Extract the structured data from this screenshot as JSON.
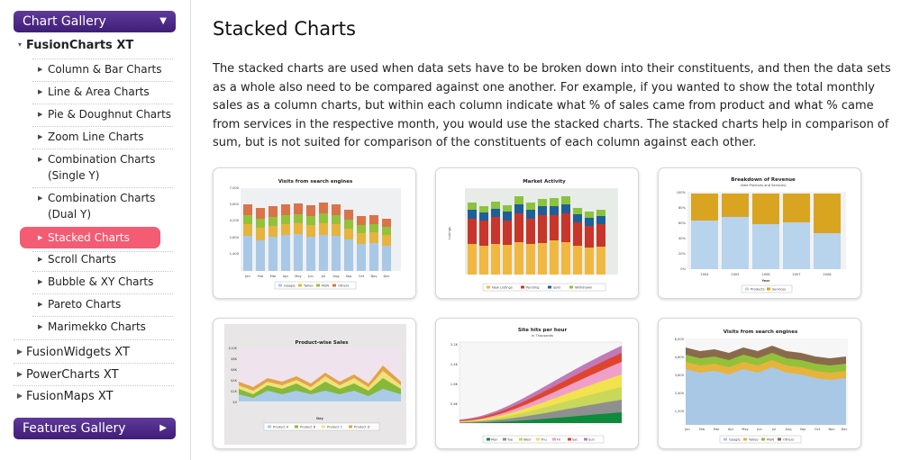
{
  "sidebar": {
    "chart_gallery_label": "Chart Gallery",
    "features_gallery_label": "Features Gallery",
    "fusioncharts_label": "FusionCharts XT",
    "items": [
      {
        "label": "Column & Bar Charts"
      },
      {
        "label": "Line & Area Charts"
      },
      {
        "label": "Pie & Doughnut Charts"
      },
      {
        "label": "Zoom Line Charts"
      },
      {
        "label": "Combination Charts",
        "label2": "(Single Y)"
      },
      {
        "label": "Combination Charts",
        "label2": "(Dual Y)"
      },
      {
        "label": "Stacked Charts"
      },
      {
        "label": "Scroll Charts"
      },
      {
        "label": "Bubble & XY Charts"
      },
      {
        "label": "Pareto Charts"
      },
      {
        "label": "Marimekko Charts"
      }
    ],
    "products": [
      {
        "label": "FusionWidgets XT"
      },
      {
        "label": "PowerCharts XT"
      },
      {
        "label": "FusionMaps XT"
      }
    ]
  },
  "main": {
    "title": "Stacked Charts",
    "intro": "The stacked charts are used when data sets have to be broken down into their constituents, and then the data sets as a whole also need to be compared against one another. For example, if you wanted to show the total monthly sales as a column charts, but within each column indicate what % of sales came from product and what % came from services in the respective month, you would use the stacked charts. The stacked charts help in comparison of sum, but is not suited for comparison of the constituents of each column against each other."
  },
  "thumbs": [
    {
      "title": "Visits from search engines",
      "y_ticks": [
        "7,000",
        "5,600",
        "4,200",
        "2,800",
        "1,400"
      ],
      "x_labels": [
        "Jan",
        "Feb",
        "Mar",
        "Apr",
        "May",
        "Jun",
        "Jul",
        "Aug",
        "Sep",
        "Oct",
        "Nov",
        "Dec"
      ],
      "legend": [
        "Google",
        "Yahoo",
        "MSN",
        "Others"
      ],
      "colors": [
        "#a9c8e6",
        "#e6b43c",
        "#93c13a",
        "#d9734a"
      ]
    },
    {
      "title": "Market Activity",
      "y_label": "Listings",
      "legend": [
        "New Listings",
        "Pending",
        "Sold",
        "Withdrawn"
      ],
      "colors": [
        "#f0b840",
        "#c8352a",
        "#1f5f99",
        "#8cc33c"
      ]
    },
    {
      "title": "Breakdown of Revenue",
      "subtitle": "(Sale Products and Services)",
      "y_ticks": [
        "100%",
        "80%",
        "60%",
        "40%",
        "20%",
        "0%"
      ],
      "x_labels": [
        "2004",
        "2005",
        "2006",
        "2007",
        "2008"
      ],
      "x_title": "Year",
      "legend": [
        "Products",
        "Services"
      ],
      "colors": [
        "#b8d3ec",
        "#d9a521"
      ]
    },
    {
      "title": "Product-wise Sales",
      "y_ticks": [
        "$10K",
        "$8K",
        "$6K",
        "$4K",
        "$2K",
        "$0"
      ],
      "x_title": "Day",
      "legend": [
        "Product A",
        "Product B",
        "Product C",
        "Product D"
      ],
      "colors": [
        "#a9cbe8",
        "#86b83a",
        "#f0e27a",
        "#e3a24a"
      ]
    },
    {
      "title": "Site hits per hour",
      "subtitle": "In Thousands",
      "y_ticks": [
        "3.2K",
        "2.4K",
        "1.6K",
        "0.8K"
      ],
      "legend": [
        "Mon",
        "Tue",
        "Wed",
        "Thu",
        "Fri",
        "Sat",
        "Sun"
      ],
      "colors": [
        "#0d8a3c",
        "#8f8f8f",
        "#c9d85a",
        "#f2e24e",
        "#f0a0c8",
        "#e0442d",
        "#c07ab8"
      ]
    },
    {
      "title": "Visits from search engines",
      "y_ticks": [
        "6,000",
        "4,800",
        "3,600",
        "2,400",
        "1,200"
      ],
      "x_labels": [
        "Jan",
        "Feb",
        "Mar",
        "Apr",
        "May",
        "Jun",
        "Jul",
        "Aug",
        "Sep",
        "Oct",
        "Nov",
        "Dec"
      ],
      "legend": [
        "Google",
        "Yahoo",
        "MSN",
        "Others"
      ],
      "colors": [
        "#a9c8e6",
        "#e6b43c",
        "#93c13a",
        "#8a6a4c"
      ]
    }
  ]
}
